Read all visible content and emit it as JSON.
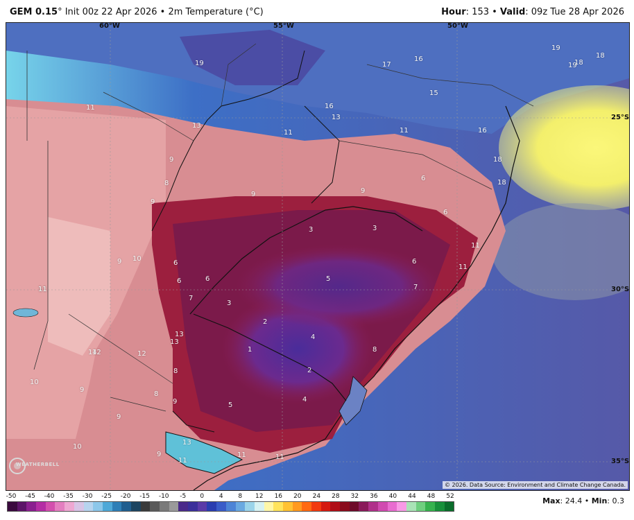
{
  "header": {
    "model": "GEM 0.15",
    "model_suffix": "° Init 00z 22 Apr 2026 • 2m Temperature (°C)",
    "hour_label": "Hour",
    "hour_value": ": 153 • ",
    "valid_label": "Valid",
    "valid_value": ": 09z Tue 28 Apr 2026"
  },
  "map": {
    "longitude_labels": [
      "60°W",
      "55°W",
      "50°W"
    ],
    "latitude_labels": [
      "25°S",
      "30°S",
      "35°S"
    ],
    "value_labels": [
      "19",
      "17",
      "16",
      "15",
      "16",
      "13",
      "11",
      "11",
      "13",
      "9",
      "8",
      "9",
      "9",
      "11",
      "19",
      "19",
      "18",
      "18",
      "16",
      "18",
      "18",
      "11",
      "6",
      "6",
      "9",
      "3",
      "3",
      "6",
      "6",
      "5",
      "6",
      "7",
      "7",
      "6",
      "3",
      "2",
      "4",
      "1",
      "2",
      "11",
      "10",
      "9",
      "11",
      "13",
      "14",
      "12",
      "8",
      "8",
      "9",
      "5",
      "4",
      "9",
      "10",
      "9",
      "13",
      "11",
      "11",
      "11",
      "10",
      "9",
      "8",
      "11",
      "13",
      "12"
    ],
    "credit": "© 2026. Data Source: Environment and Climate Change Canada."
  },
  "logo": {
    "text": "WEATHERBELL",
    "icon": "weatherbell-logo"
  },
  "colorbar": {
    "ticks": [
      "-50",
      "-45",
      "-40",
      "-35",
      "-30",
      "-25",
      "-20",
      "-15",
      "-10",
      "-5",
      "0",
      "4",
      "8",
      "12",
      "16",
      "20",
      "24",
      "28",
      "32",
      "36",
      "40",
      "44",
      "48",
      "52"
    ],
    "colors": [
      "#3a0a3e",
      "#5c1468",
      "#8a1f8f",
      "#b42da4",
      "#d34fae",
      "#e47ec0",
      "#eea7d2",
      "#d8c4e6",
      "#b7d4ef",
      "#8cc7ea",
      "#4fa9d8",
      "#2e7fb7",
      "#205e8f",
      "#1c4460",
      "#3a3a3a",
      "#5a5a5a",
      "#7a7a7a",
      "#9a9a9a",
      "#4a2a8a",
      "#3b2f9a",
      "#5a3aa8",
      "#2a3db0",
      "#3a5cc8",
      "#4d84d6",
      "#6aa9e1",
      "#9bd4ea",
      "#d7f2f3",
      "#fff7a8",
      "#ffe45c",
      "#ffc233",
      "#ff9a1f",
      "#ff6a12",
      "#f23a0f",
      "#d51a10",
      "#b00d16",
      "#8a0b1c",
      "#6e0a2a",
      "#8a1a5a",
      "#b0308a",
      "#d04ab0",
      "#e86cd0",
      "#f89ae6",
      "#a9e3b6",
      "#6fcf7f",
      "#36b24e",
      "#17903a",
      "#0a6d2b"
    ],
    "max_label": "Max",
    "max_value": ": 24.4 • ",
    "min_label": "Min",
    "min_value": ": 0.3"
  }
}
